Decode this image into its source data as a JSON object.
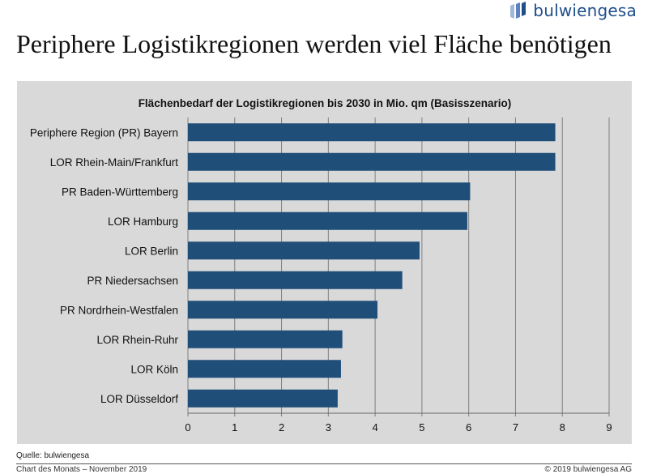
{
  "brand": {
    "name": "bulwiengesa",
    "accent": "#1f4e8c"
  },
  "page_title": "Periphere Logistikregionen werden viel Fläche benötigen",
  "source": "Quelle: bulwiengesa",
  "footer": {
    "left": "Chart des Monats – November 2019",
    "right": "© 2019 bulwiengesa AG"
  },
  "colors": {
    "bar": "#1f4e79",
    "panel": "#d9d9d9",
    "grid": "#7f7f7f"
  },
  "chart_data": {
    "type": "bar",
    "orientation": "horizontal",
    "title": "Flächenbedarf der Logistikregionen bis 2030 in Mio. qm (Basisszenario)",
    "xlabel": "",
    "ylabel": "",
    "xlim": [
      0,
      9
    ],
    "ticks": [
      0,
      1,
      2,
      3,
      4,
      5,
      6,
      7,
      8,
      9
    ],
    "grid": true,
    "categories": [
      "Periphere Region (PR) Bayern",
      "LOR Rhein-Main/Frankfurt",
      "PR Baden-Württemberg",
      "LOR Hamburg",
      "LOR Berlin",
      "PR Niedersachsen",
      "PR Nordrhein-Westfalen",
      "LOR Rhein-Ruhr",
      "LOR Köln",
      "LOR Düsseldorf"
    ],
    "values": [
      7.85,
      7.85,
      6.03,
      5.97,
      4.95,
      4.58,
      4.05,
      3.3,
      3.27,
      3.2
    ]
  }
}
